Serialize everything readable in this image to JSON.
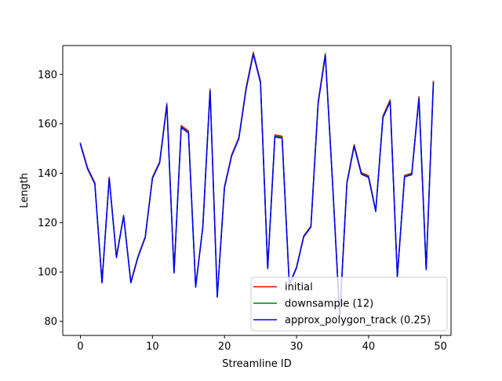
{
  "chart_data": {
    "type": "line",
    "xlabel": "Streamline ID",
    "ylabel": "Length",
    "xlim": [
      -2.45,
      51.45
    ],
    "ylim": [
      74.3,
      191.7
    ],
    "xticks": [
      0,
      10,
      20,
      30,
      40,
      50
    ],
    "yticks": [
      80,
      100,
      120,
      140,
      160,
      180
    ],
    "grid": false,
    "legend_position": "lower-right",
    "x": [
      0,
      1,
      2,
      3,
      4,
      5,
      6,
      7,
      8,
      9,
      10,
      11,
      12,
      13,
      14,
      15,
      16,
      17,
      18,
      19,
      20,
      21,
      22,
      23,
      24,
      25,
      26,
      27,
      28,
      29,
      30,
      31,
      32,
      33,
      34,
      35,
      36,
      37,
      38,
      39,
      40,
      41,
      42,
      43,
      44,
      45,
      46,
      47,
      48,
      49
    ],
    "series": [
      {
        "name": "initial",
        "color": "#ff0000",
        "values": [
          152.2,
          142.2,
          136.2,
          96.0,
          138.4,
          106.2,
          123.0,
          96.0,
          106.4,
          114.3,
          138.4,
          144.6,
          168.3,
          100.0,
          159.3,
          157.1,
          94.2,
          118.6,
          174.1,
          90.2,
          134.6,
          147.5,
          154.5,
          174.6,
          189.0,
          177.3,
          101.7,
          155.5,
          155.0,
          95.1,
          102.0,
          114.6,
          118.6,
          168.8,
          188.5,
          136.7,
          82.0,
          136.4,
          151.6,
          140.3,
          139.0,
          124.9,
          163.2,
          169.7,
          98.3,
          139.1,
          140.0,
          171.0,
          101.3,
          177.2
        ]
      },
      {
        "name": "downsample (12)",
        "color": "#008000",
        "values": [
          151.9,
          141.9,
          135.9,
          95.8,
          138.1,
          106.0,
          122.8,
          95.8,
          106.2,
          114.1,
          138.1,
          144.3,
          167.8,
          99.8,
          158.8,
          156.6,
          94.0,
          118.4,
          173.6,
          90.0,
          134.3,
          147.2,
          154.2,
          174.2,
          188.5,
          176.9,
          101.5,
          155.0,
          154.5,
          94.9,
          101.8,
          114.4,
          118.4,
          168.4,
          188.0,
          136.4,
          81.8,
          136.1,
          151.2,
          139.9,
          138.6,
          124.7,
          162.8,
          169.2,
          98.1,
          138.8,
          139.7,
          170.6,
          101.1,
          176.8
        ]
      },
      {
        "name": "approx_polygon_track (0.25)",
        "color": "#0000ff",
        "values": [
          151.7,
          141.7,
          135.7,
          95.6,
          137.9,
          105.8,
          122.6,
          95.6,
          106.0,
          113.9,
          137.9,
          144.1,
          167.5,
          99.6,
          158.5,
          156.3,
          93.8,
          118.2,
          173.3,
          89.8,
          134.1,
          147.0,
          154.0,
          173.9,
          188.2,
          176.6,
          101.3,
          154.7,
          154.2,
          94.7,
          101.6,
          114.2,
          118.2,
          168.1,
          187.7,
          136.2,
          81.6,
          135.9,
          150.9,
          139.6,
          138.3,
          124.5,
          162.5,
          168.9,
          97.9,
          138.5,
          139.4,
          170.3,
          100.9,
          176.5
        ]
      }
    ]
  }
}
